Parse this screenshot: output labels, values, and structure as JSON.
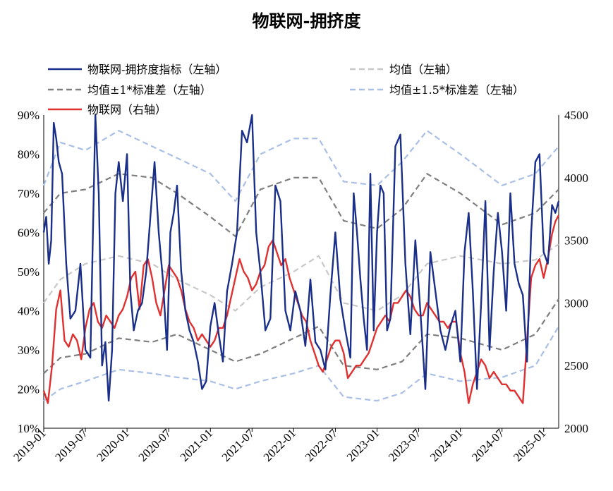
{
  "chart_data": {
    "type": "line",
    "title": "物联网-拥挤度",
    "legend": [
      {
        "key": "index",
        "label": "物联网-拥挤度指标（左轴）"
      },
      {
        "key": "mean",
        "label": "均值（左轴）"
      },
      {
        "key": "sd1",
        "label": "均值±1*标准差（左轴）"
      },
      {
        "key": "sd15",
        "label": "均值±1.5*标准差（左轴）"
      },
      {
        "key": "price",
        "label": "物联网（右轴）"
      }
    ],
    "colors": {
      "index": "#1a2f8a",
      "price": "#e03030",
      "mean": "#c8c8c8",
      "sd1": "#7f7f7f",
      "sd15": "#a9bfe6"
    },
    "x_ticks": [
      "2019-01",
      "2019-07",
      "2020-01",
      "2020-07",
      "2021-01",
      "2021-07",
      "2022-01",
      "2022-07",
      "2023-01",
      "2023-07",
      "2024-01",
      "2024-07",
      "2025-01"
    ],
    "x_range": [
      "2019-01",
      "2025-03"
    ],
    "y_left": {
      "ticks": [
        "10%",
        "20%",
        "30%",
        "40%",
        "50%",
        "60%",
        "70%",
        "80%",
        "90%"
      ],
      "range": [
        10,
        90
      ],
      "unit": "%"
    },
    "y_right": {
      "ticks": [
        "2000",
        "2500",
        "3000",
        "3500",
        "4000",
        "4500"
      ],
      "range": [
        2000,
        4500
      ]
    },
    "series": [
      {
        "key": "index",
        "axis": "left",
        "x": [
          2019.0,
          2019.03,
          2019.06,
          2019.09,
          2019.12,
          2019.15,
          2019.18,
          2019.22,
          2019.27,
          2019.32,
          2019.38,
          2019.44,
          2019.5,
          2019.56,
          2019.62,
          2019.66,
          2019.7,
          2019.74,
          2019.78,
          2019.82,
          2019.86,
          2019.9,
          2019.95,
          2020.0,
          2020.04,
          2020.08,
          2020.13,
          2020.18,
          2020.23,
          2020.28,
          2020.33,
          2020.38,
          2020.43,
          2020.48,
          2020.52,
          2020.56,
          2020.6,
          2020.65,
          2020.7,
          2020.75,
          2020.8,
          2020.85,
          2020.9,
          2020.95,
          2021.0,
          2021.05,
          2021.1,
          2021.15,
          2021.2,
          2021.26,
          2021.32,
          2021.38,
          2021.44,
          2021.5,
          2021.55,
          2021.6,
          2021.66,
          2021.72,
          2021.78,
          2021.84,
          2021.9,
          2021.96,
          2022.02,
          2022.08,
          2022.14,
          2022.2,
          2022.26,
          2022.32,
          2022.38,
          2022.44,
          2022.5,
          2022.56,
          2022.62,
          2022.68,
          2022.72,
          2022.76,
          2022.8,
          2022.84,
          2022.88,
          2022.92,
          2022.96,
          2023.0,
          2023.04,
          2023.08,
          2023.12,
          2023.16,
          2023.22,
          2023.28,
          2023.34,
          2023.4,
          2023.46,
          2023.52,
          2023.58,
          2023.64,
          2023.7,
          2023.76,
          2023.82,
          2023.88,
          2023.94,
          2024.0,
          2024.05,
          2024.1,
          2024.15,
          2024.2,
          2024.25,
          2024.3,
          2024.35,
          2024.4,
          2024.45,
          2024.5,
          2024.55,
          2024.6,
          2024.65,
          2024.7,
          2024.75,
          2024.8,
          2024.85,
          2024.9,
          2024.95,
          2025.0,
          2025.05,
          2025.1,
          2025.14,
          2025.18
        ],
        "values": [
          60,
          64,
          52,
          58,
          88,
          84,
          78,
          75,
          52,
          38,
          40,
          52,
          30,
          28,
          90,
          70,
          26,
          32,
          17,
          30,
          70,
          78,
          68,
          80,
          45,
          35,
          40,
          42,
          50,
          64,
          78,
          60,
          48,
          30,
          60,
          65,
          72,
          50,
          40,
          35,
          32,
          27,
          20,
          22,
          36,
          42,
          34,
          27,
          45,
          52,
          60,
          86,
          83,
          90,
          60,
          50,
          35,
          38,
          72,
          68,
          40,
          35,
          45,
          40,
          31,
          48,
          32,
          30,
          25,
          44,
          60,
          43,
          35,
          28,
          70,
          60,
          48,
          38,
          30,
          75,
          35,
          60,
          72,
          70,
          35,
          38,
          82,
          85,
          52,
          34,
          58,
          40,
          20,
          55,
          45,
          35,
          30,
          36,
          40,
          27,
          55,
          65,
          45,
          20,
          42,
          68,
          30,
          50,
          65,
          55,
          40,
          70,
          52,
          47,
          44,
          27,
          60,
          78,
          80,
          55,
          52,
          67,
          65,
          68
        ]
      },
      {
        "key": "price",
        "axis": "right",
        "x": [
          2019.0,
          2019.05,
          2019.1,
          2019.15,
          2019.2,
          2019.25,
          2019.3,
          2019.35,
          2019.4,
          2019.45,
          2019.5,
          2019.55,
          2019.6,
          2019.65,
          2019.7,
          2019.75,
          2019.8,
          2019.85,
          2019.9,
          2019.95,
          2020.0,
          2020.05,
          2020.1,
          2020.15,
          2020.2,
          2020.25,
          2020.3,
          2020.35,
          2020.4,
          2020.45,
          2020.5,
          2020.55,
          2020.6,
          2020.65,
          2020.7,
          2020.75,
          2020.8,
          2020.85,
          2020.9,
          2020.95,
          2021.0,
          2021.05,
          2021.1,
          2021.15,
          2021.2,
          2021.25,
          2021.3,
          2021.35,
          2021.4,
          2021.45,
          2021.5,
          2021.55,
          2021.6,
          2021.65,
          2021.7,
          2021.75,
          2021.8,
          2021.85,
          2021.9,
          2021.95,
          2022.0,
          2022.05,
          2022.1,
          2022.15,
          2022.2,
          2022.25,
          2022.3,
          2022.35,
          2022.4,
          2022.45,
          2022.5,
          2022.55,
          2022.6,
          2022.65,
          2022.7,
          2022.75,
          2022.8,
          2022.85,
          2022.9,
          2022.95,
          2023.0,
          2023.05,
          2023.1,
          2023.15,
          2023.2,
          2023.25,
          2023.3,
          2023.35,
          2023.4,
          2023.45,
          2023.5,
          2023.55,
          2023.6,
          2023.65,
          2023.7,
          2023.75,
          2023.8,
          2023.85,
          2023.9,
          2023.95,
          2024.0,
          2024.05,
          2024.1,
          2024.15,
          2024.2,
          2024.25,
          2024.3,
          2024.35,
          2024.4,
          2024.45,
          2024.5,
          2024.55,
          2024.6,
          2024.65,
          2024.7,
          2024.75,
          2024.8,
          2024.85,
          2024.9,
          2024.95,
          2025.0,
          2025.05,
          2025.1,
          2025.14,
          2025.18
        ],
        "values": [
          2300,
          2200,
          2500,
          2950,
          3100,
          2700,
          2650,
          2750,
          2700,
          2550,
          2800,
          2950,
          3000,
          2850,
          2800,
          2900,
          2850,
          2800,
          2900,
          2950,
          3050,
          3200,
          3250,
          2950,
          3300,
          3350,
          3200,
          3000,
          2900,
          3100,
          3300,
          3250,
          3200,
          3100,
          2950,
          2850,
          2800,
          2700,
          2750,
          2700,
          2650,
          2700,
          2800,
          2800,
          2900,
          3050,
          3200,
          3350,
          3250,
          3200,
          3100,
          3150,
          3250,
          3300,
          3450,
          3500,
          3400,
          3300,
          3350,
          3200,
          3100,
          3000,
          2900,
          2850,
          2700,
          2600,
          2500,
          2450,
          2550,
          2650,
          2700,
          2700,
          2600,
          2400,
          2450,
          2500,
          2500,
          2550,
          2600,
          2700,
          2800,
          2850,
          2900,
          2850,
          3000,
          3000,
          3050,
          3100,
          3050,
          2950,
          2900,
          2900,
          3000,
          2950,
          2900,
          2850,
          2850,
          2800,
          2850,
          2850,
          2600,
          2450,
          2200,
          2350,
          2450,
          2550,
          2500,
          2400,
          2450,
          2400,
          2350,
          2350,
          2300,
          2300,
          2250,
          2200,
          2700,
          3200,
          3300,
          3350,
          3200,
          3350,
          3550,
          3650,
          3700
        ]
      },
      {
        "key": "mean",
        "axis": "left",
        "x": [
          2019.0,
          2019.2,
          2019.5,
          2019.9,
          2020.3,
          2020.6,
          2021.0,
          2021.3,
          2021.6,
          2022.0,
          2022.3,
          2022.6,
          2023.0,
          2023.3,
          2023.6,
          2024.0,
          2024.5,
          2024.9,
          2025.18
        ],
        "values": [
          42,
          48,
          52,
          54,
          52,
          48,
          44,
          40,
          46,
          50,
          54,
          42,
          40,
          44,
          52,
          54,
          52,
          53,
          57
        ]
      },
      {
        "key": "sd1_upper",
        "axis": "left",
        "x": [
          2019.0,
          2019.2,
          2019.5,
          2019.9,
          2020.3,
          2020.6,
          2021.0,
          2021.3,
          2021.6,
          2022.0,
          2022.3,
          2022.6,
          2023.0,
          2023.3,
          2023.6,
          2024.0,
          2024.5,
          2024.9,
          2025.18
        ],
        "values": [
          65,
          70,
          71,
          75,
          74,
          70,
          64,
          59,
          71,
          74,
          74,
          63,
          61,
          66,
          75,
          70,
          62,
          65,
          71
        ]
      },
      {
        "key": "sd1_lower",
        "axis": "left",
        "x": [
          2019.0,
          2019.2,
          2019.5,
          2019.9,
          2020.3,
          2020.6,
          2021.0,
          2021.3,
          2021.6,
          2022.0,
          2022.3,
          2022.6,
          2023.0,
          2023.3,
          2023.6,
          2024.0,
          2024.5,
          2024.9,
          2025.18
        ],
        "values": [
          24,
          28,
          29,
          33,
          32,
          34,
          30,
          27,
          29,
          33,
          36,
          26,
          25,
          27,
          34,
          33,
          30,
          34,
          43
        ]
      },
      {
        "key": "sd15_upper",
        "axis": "left",
        "x": [
          2019.0,
          2019.2,
          2019.5,
          2019.9,
          2020.3,
          2020.6,
          2021.0,
          2021.3,
          2021.6,
          2022.0,
          2022.3,
          2022.6,
          2023.0,
          2023.3,
          2023.6,
          2024.0,
          2024.5,
          2024.9,
          2025.18
        ],
        "values": [
          72,
          83,
          81,
          86,
          82,
          79,
          75,
          68,
          80,
          84,
          84,
          73,
          72,
          78,
          86,
          80,
          72,
          75,
          82
        ]
      },
      {
        "key": "sd15_lower",
        "axis": "left",
        "x": [
          2019.0,
          2019.2,
          2019.5,
          2019.9,
          2020.3,
          2020.6,
          2021.0,
          2021.3,
          2021.6,
          2022.0,
          2022.3,
          2022.6,
          2023.0,
          2023.3,
          2023.6,
          2024.0,
          2024.5,
          2024.9,
          2025.18
        ],
        "values": [
          17,
          20,
          22,
          25,
          24,
          23,
          22,
          20,
          22,
          24,
          26,
          18,
          17,
          19,
          24,
          22,
          23,
          26,
          36
        ]
      }
    ]
  }
}
